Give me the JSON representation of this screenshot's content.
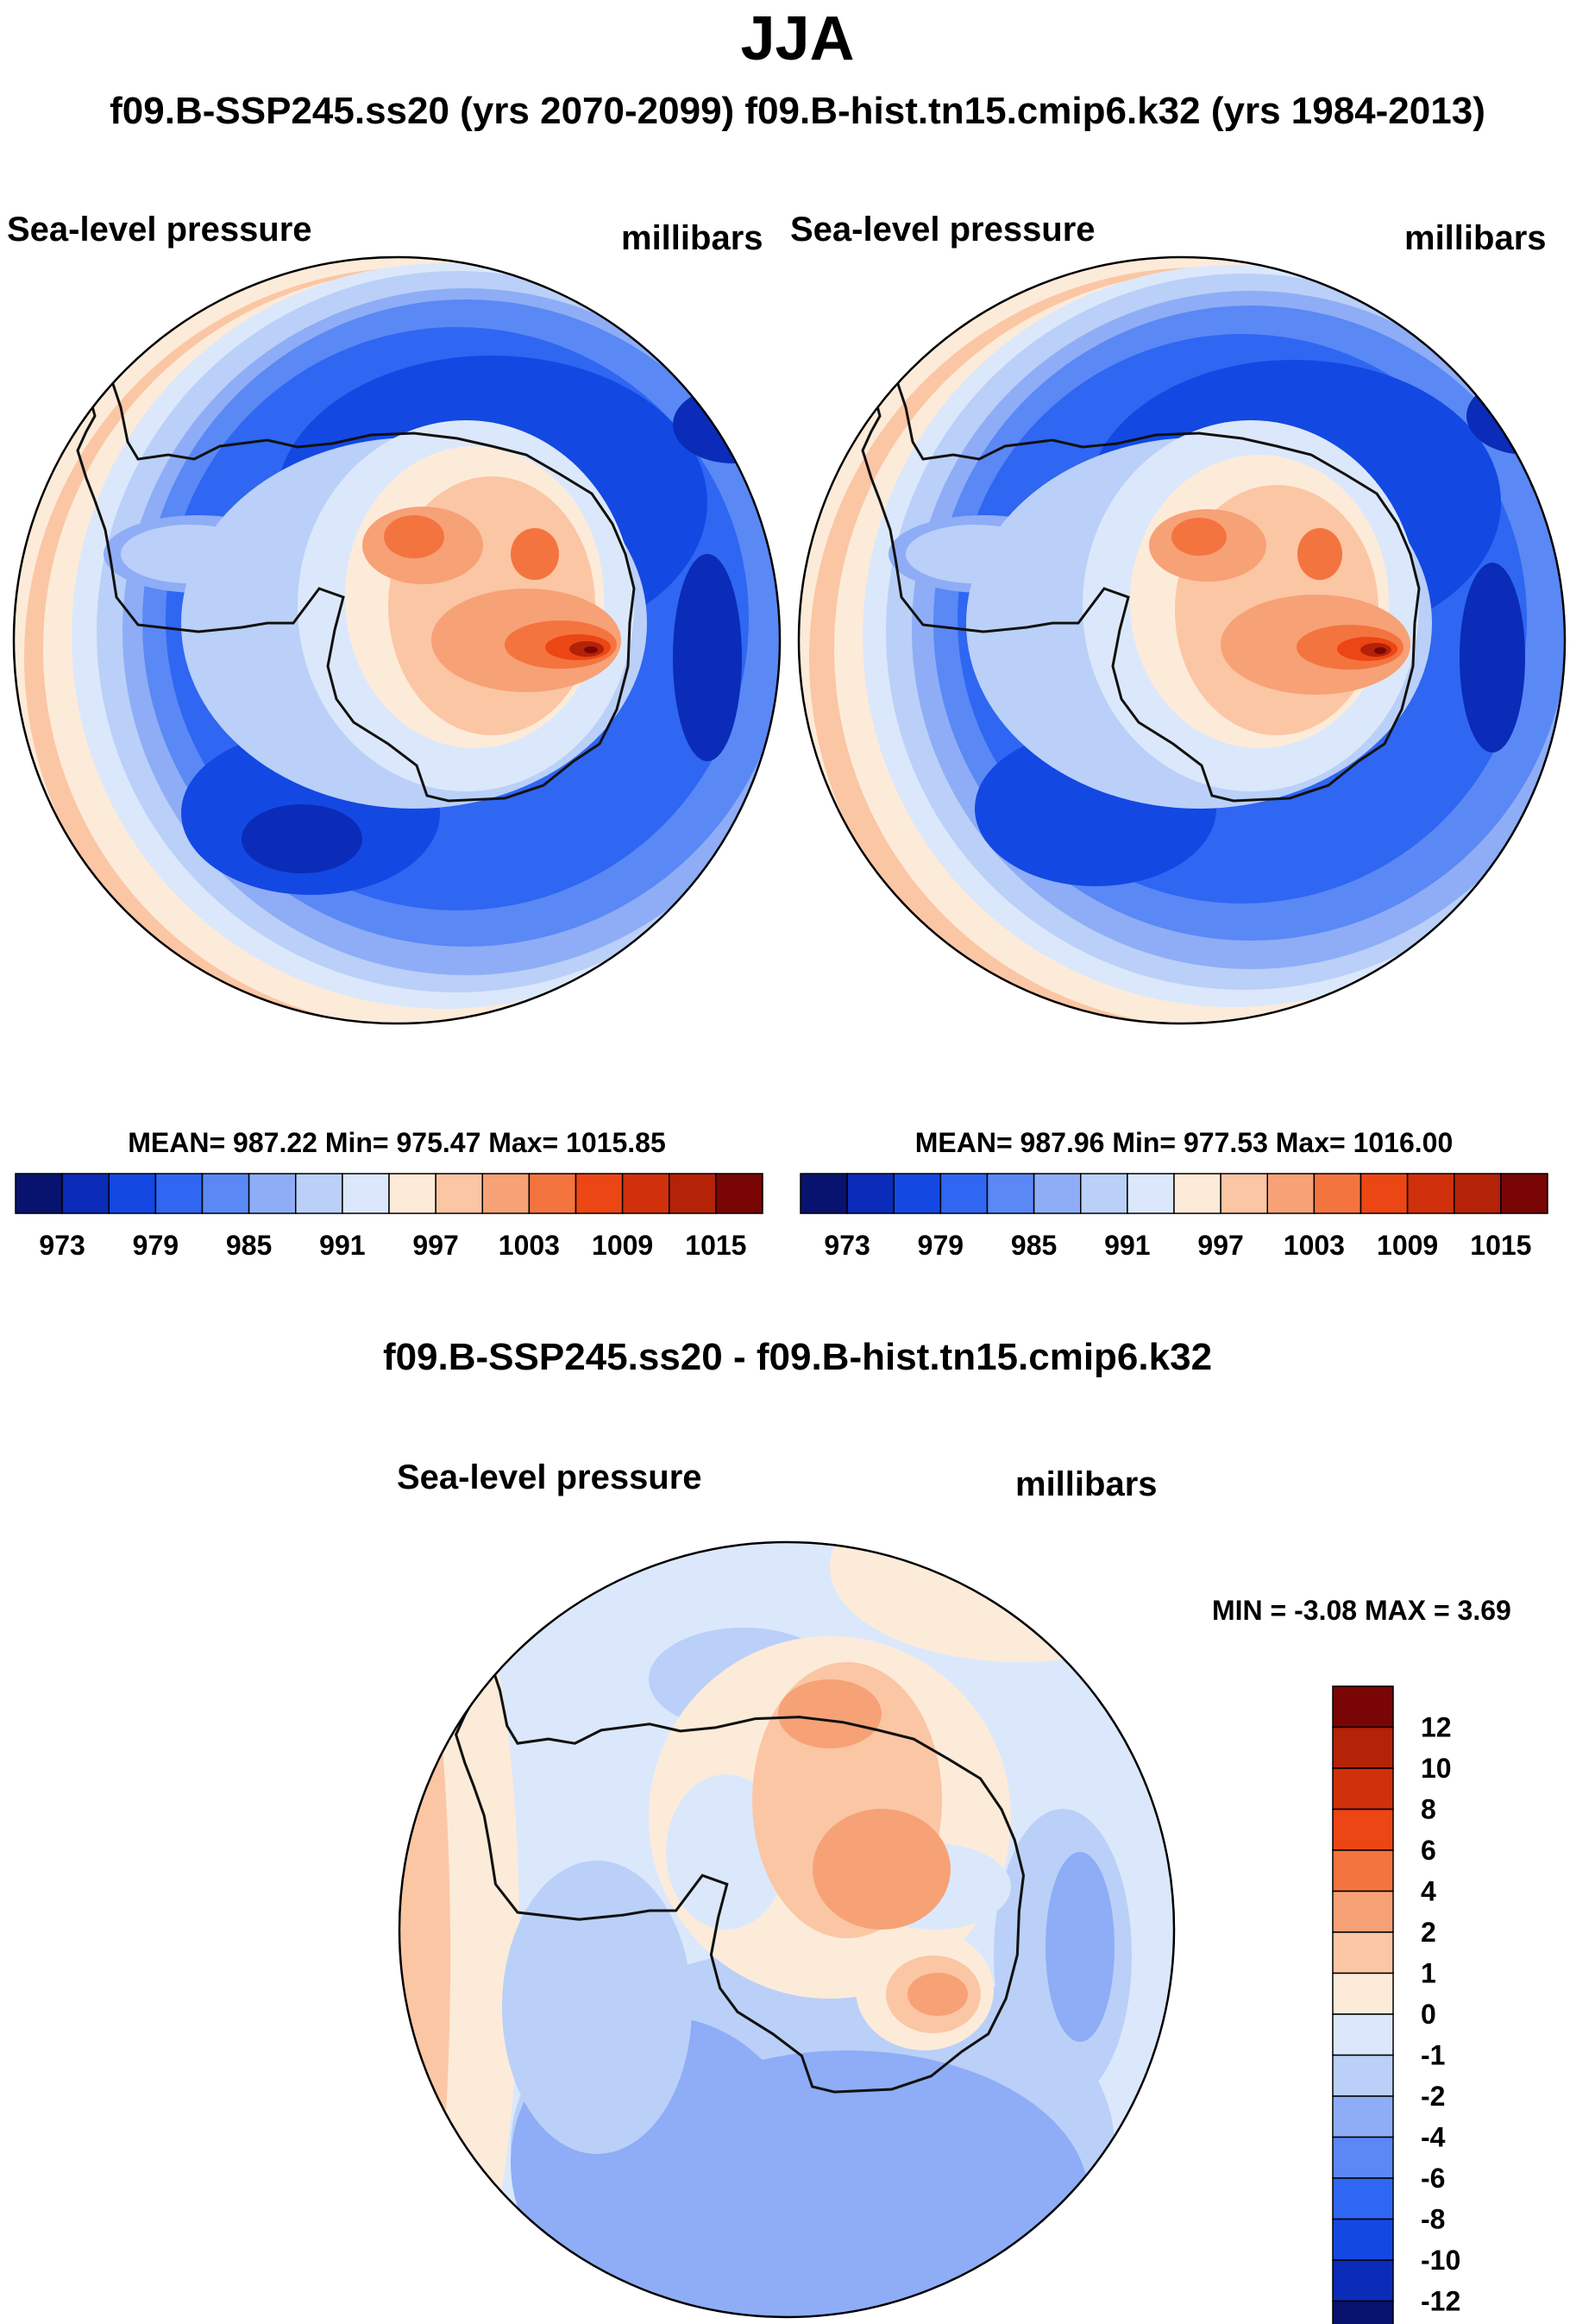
{
  "title": "JJA",
  "subtitle": "f09.B-SSP245.ss20 (yrs 2070-2099)  f09.B-hist.tn15.cmip6.k32 (yrs 1984-2013)",
  "diff_title": "f09.B-SSP245.ss20 - f09.B-hist.tn15.cmip6.k32",
  "colors": {
    "abs_scale": [
      "#08126f",
      "#0a2cb8",
      "#1348e3",
      "#2f66f2",
      "#5a88f5",
      "#8eadf6",
      "#bad0f8",
      "#dbe8fb",
      "#fdebd9",
      "#fbc6a4",
      "#f7a177",
      "#f4743f",
      "#ec4614",
      "#d0300c",
      "#b42207",
      "#7a0505"
    ],
    "diff_scale": [
      "#08126f",
      "#0a2cb8",
      "#1348e3",
      "#2f66f2",
      "#5a88f5",
      "#8eadf6",
      "#bad0f8",
      "#dbe8fb",
      "#fdebd9",
      "#fbc6a4",
      "#f7a177",
      "#f4743f",
      "#ec4614",
      "#d0300c",
      "#b42207",
      "#7a0505"
    ],
    "coastline": "#111111"
  },
  "chart_data": [
    {
      "type": "polar-contour-map",
      "title": "Sea-level pressure",
      "units": "millibars",
      "stats": "MEAN= 987.22  Min= 975.47  Max= 1015.85",
      "mean": 987.22,
      "min": 975.47,
      "max": 1015.85,
      "colorbar_ticks": [
        "973",
        "979",
        "985",
        "991",
        "997",
        "1003",
        "1009",
        "1015"
      ],
      "colorbar_orientation": "horizontal"
    },
    {
      "type": "polar-contour-map",
      "title": "Sea-level pressure",
      "units": "millibars",
      "stats": "MEAN= 987.96  Min= 977.53  Max= 1016.00",
      "mean": 987.96,
      "min": 977.53,
      "max": 1016.0,
      "colorbar_ticks": [
        "973",
        "979",
        "985",
        "991",
        "997",
        "1003",
        "1009",
        "1015"
      ],
      "colorbar_orientation": "horizontal"
    },
    {
      "type": "polar-contour-map",
      "title": "Sea-level pressure",
      "units": "millibars",
      "stats": "MIN =  -3.08 MAX =   3.69",
      "min": -3.08,
      "max": 3.69,
      "colorbar_ticks": [
        "12",
        "10",
        "8",
        "6",
        "4",
        "2",
        "1",
        "0",
        "-1",
        "-2",
        "-4",
        "-6",
        "-8",
        "-10",
        "-12"
      ],
      "colorbar_orientation": "vertical"
    }
  ]
}
